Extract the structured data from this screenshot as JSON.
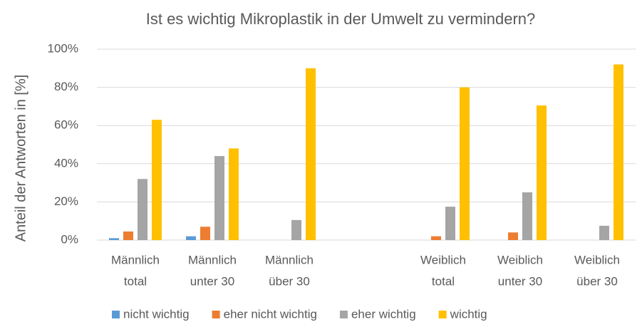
{
  "chart_data": {
    "type": "bar",
    "title": "Ist es wichtig Mikroplastik in der Umwelt zu vermindern?",
    "y_label": "Anteil der Antworten in [%]",
    "categories": [
      [
        "Männlich",
        "total"
      ],
      [
        "Männlich",
        "unter 30"
      ],
      [
        "Männlich",
        "über 30"
      ],
      null,
      [
        "Weiblich",
        "total"
      ],
      [
        "Weiblich",
        "unter 30"
      ],
      [
        "Weiblich",
        "über 30"
      ]
    ],
    "series": [
      {
        "name": "nicht wichtig",
        "color": "#5b9bd5",
        "values": [
          1,
          2,
          0,
          null,
          0,
          0,
          0
        ]
      },
      {
        "name": "eher nicht wichtig",
        "color": "#ed7d31",
        "values": [
          4.5,
          7,
          0,
          null,
          2,
          4,
          0
        ]
      },
      {
        "name": "eher wichtig",
        "color": "#a5a5a5",
        "values": [
          32,
          44,
          10.5,
          null,
          17.5,
          25,
          7.5
        ]
      },
      {
        "name": "wichtig",
        "color": "#ffc000",
        "values": [
          63,
          48,
          90,
          null,
          80,
          70.5,
          92
        ]
      }
    ],
    "ylim": [
      0,
      100
    ],
    "yticks": [
      {
        "value": 0,
        "label": "0%"
      },
      {
        "value": 20,
        "label": "20%"
      },
      {
        "value": 40,
        "label": "40%"
      },
      {
        "value": 60,
        "label": "60%"
      },
      {
        "value": 80,
        "label": "80%"
      },
      {
        "value": 100,
        "label": "100%"
      }
    ],
    "grid": true,
    "legend": "bottom"
  }
}
